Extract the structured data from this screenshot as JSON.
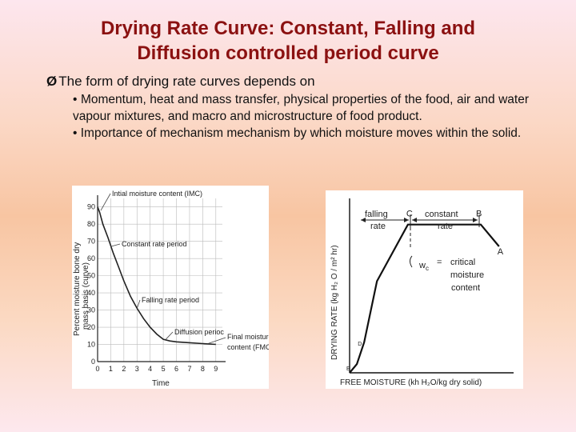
{
  "slide": {
    "title_line1": "Drying Rate Curve: Constant, Falling and",
    "title_line2": "Diffusion controlled period curve",
    "bullet_arrow": "Ø",
    "bullet_text": "The form of drying rate curves depends on",
    "sub_bullets": [
      "• Momentum, heat and mass transfer, physical properties of the food, air and water vapour mixtures, and macro and microstructure of food product.",
      "• Importance of mechanism  mechanism by which moisture moves within the solid."
    ]
  },
  "chart_data": [
    {
      "type": "line",
      "xlabel": "Time",
      "ylabel_line1": "Percent moisture bone dry",
      "ylabel_line2": "mass basis (curve)",
      "x_ticks": [
        0,
        1,
        2,
        3,
        4,
        5,
        6,
        7,
        8,
        9
      ],
      "y_ticks": [
        0,
        10,
        20,
        30,
        40,
        50,
        60,
        70,
        80,
        90
      ],
      "xlim": [
        0,
        9.5
      ],
      "ylim": [
        0,
        95
      ],
      "series": [
        {
          "x": [
            0,
            0.15,
            0.4,
            0.8,
            1.2,
            1.6,
            2.0,
            2.5,
            3.0,
            3.5,
            4.0,
            4.5,
            5.0,
            5.5,
            6.0,
            7.0,
            8.0,
            9.0
          ],
          "y": [
            90,
            87,
            80,
            72,
            63,
            55,
            47,
            38,
            31,
            25,
            20,
            16,
            13,
            12,
            11.5,
            11,
            10.5,
            10
          ]
        }
      ],
      "annotations": [
        "Intial moisture content (IMC)",
        "Constant rate period",
        "Falling rate period",
        "Diffusion perioc",
        "Final moisture",
        "content (FMC)"
      ]
    },
    {
      "type": "line",
      "xlabel": "FREE MOISTURE (kh H₂O/kg dry solid)",
      "ylabel": "DRYING RATE (kg H₂ O / m² hr)",
      "series": [
        {
          "x": [
            0,
            0.4,
            0.8,
            1.5,
            3.2,
            7.2,
            8.2
          ],
          "y": [
            0,
            2,
            7,
            21,
            34,
            34,
            29
          ]
        }
      ],
      "point_labels": [
        "E",
        "D",
        "C",
        "B",
        "A"
      ],
      "region_labels": [
        "falling",
        "rate",
        "constant",
        "rate"
      ],
      "critical_label": "w",
      "critical_sub": "c",
      "critical_eq": "=",
      "critical_text": [
        "critical",
        "moisture",
        "content"
      ]
    }
  ]
}
